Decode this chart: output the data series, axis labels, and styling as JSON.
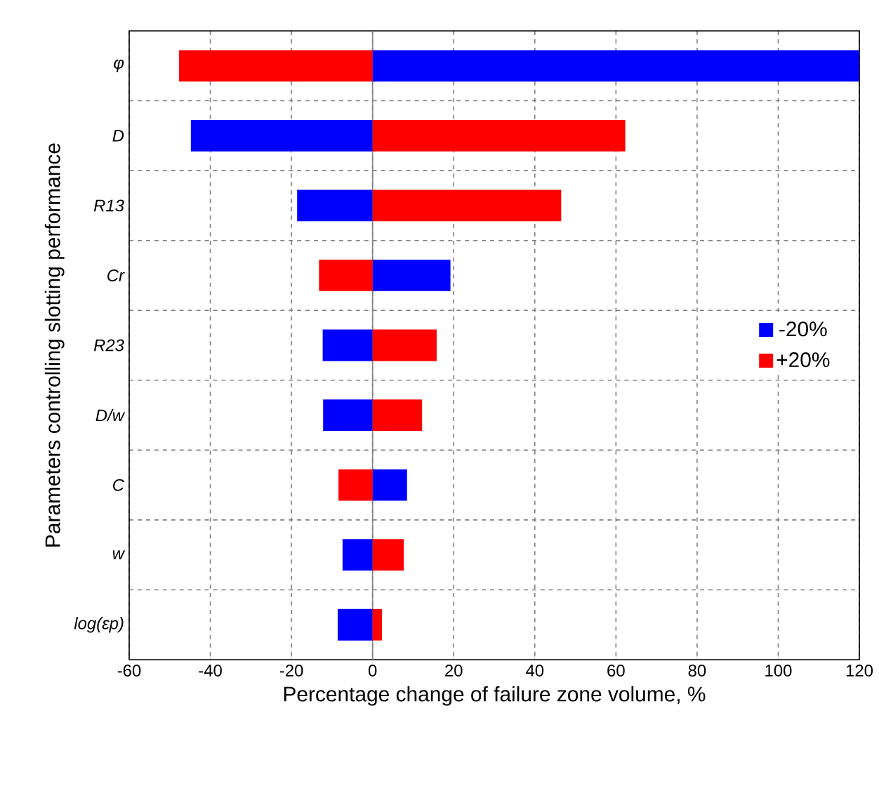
{
  "chart_data": {
    "type": "bar",
    "orientation": "horizontal",
    "xlabel": "Percentage change of failure zone volume, %",
    "ylabel": "Parameters controlling slotting performance",
    "categories": [
      "φ",
      "D",
      "R13",
      "Cr",
      "R23",
      "D/w",
      "C",
      "w",
      "log(εp)"
    ],
    "series": [
      {
        "name": "-20%",
        "color": "#0000ff",
        "values": [
          120,
          -44.8,
          -18.6,
          19.2,
          -12.3,
          -12.2,
          8.5,
          -7.4,
          -8.6
        ]
      },
      {
        "name": "+20%",
        "color": "#ff0000",
        "values": [
          -47.7,
          62.3,
          46.5,
          -13.2,
          15.8,
          12.2,
          -8.4,
          7.7,
          2.3
        ]
      }
    ],
    "xlim": [
      -60,
      120
    ],
    "xticks": [
      -60,
      -40,
      -20,
      0,
      20,
      40,
      60,
      80,
      100,
      120
    ],
    "ref_lines": [
      {
        "axis": "x",
        "value": 0,
        "color": "#808080"
      }
    ],
    "grid": true,
    "legend": "right",
    "stacked": true
  }
}
